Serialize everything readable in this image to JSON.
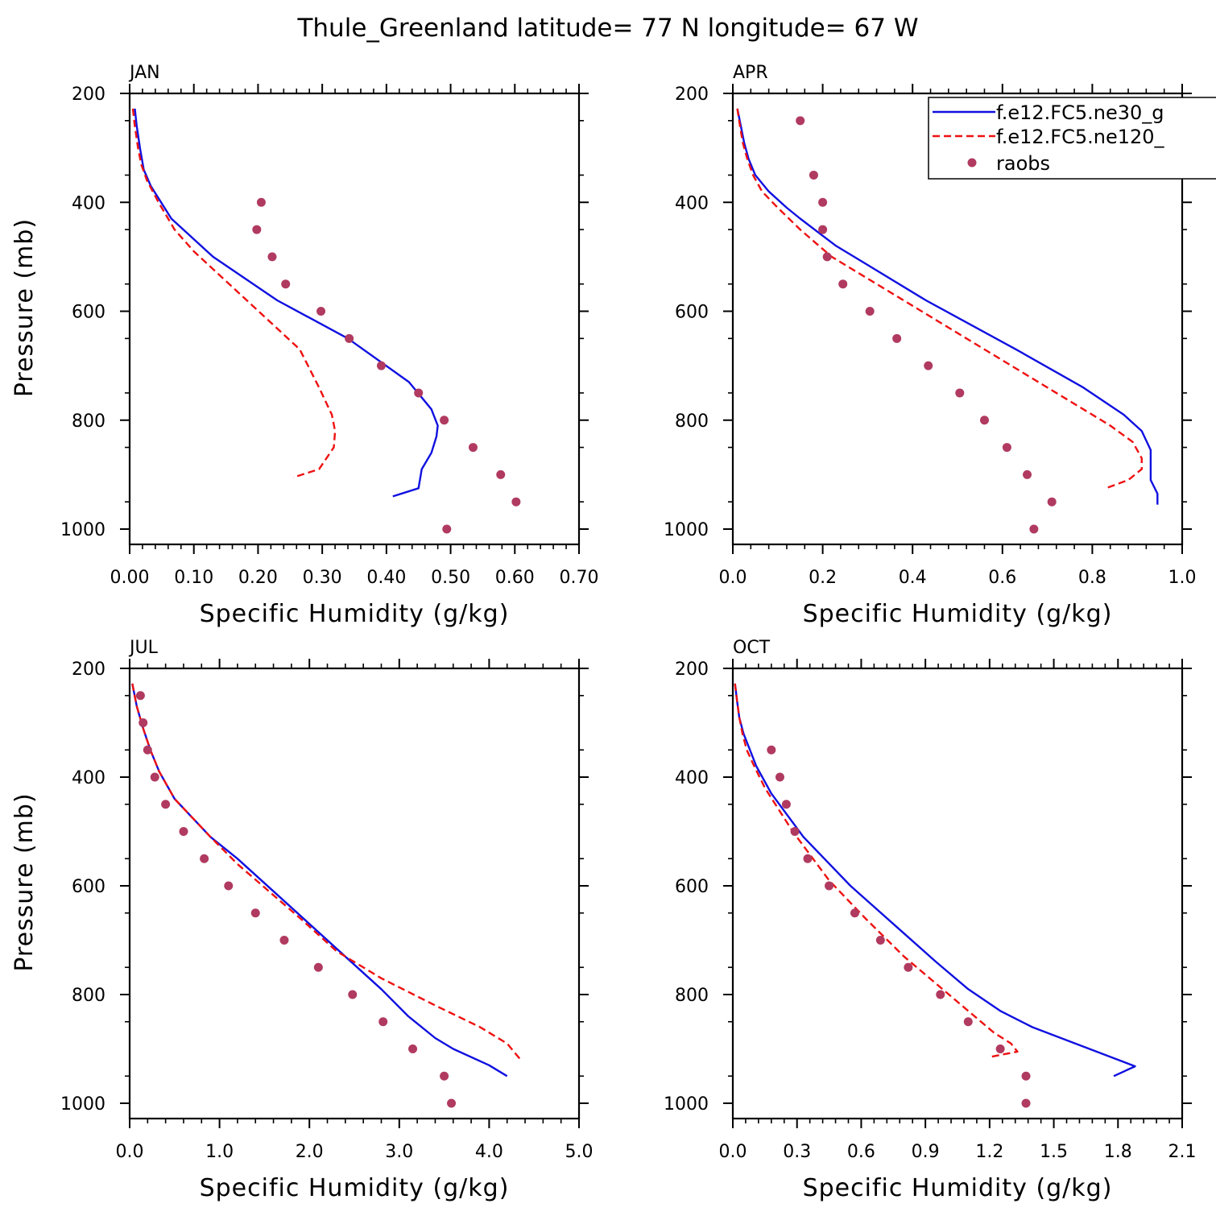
{
  "title": "Thule_Greenland  latitude= 77 N longitude= 67 W",
  "colors": {
    "model1": "#1010e0",
    "model2": "#ee1111",
    "obs": "#b03a60",
    "axis": "#000000"
  },
  "legend": {
    "entries": [
      {
        "key": "model1",
        "label": "f.e12.FC5.ne30_g",
        "style": "solid-line"
      },
      {
        "key": "model2",
        "label": "f.e12.FC5.ne120_",
        "style": "dashed-line"
      },
      {
        "key": "obs",
        "label": "raobs",
        "style": "dot"
      }
    ]
  },
  "chart_data": [
    {
      "type": "line",
      "panel_label": "JAN",
      "xlabel": "Specific Humidity (g/kg)",
      "ylabel": "Pressure (mb)",
      "xlim": [
        0,
        0.7
      ],
      "ylim": [
        200,
        1000
      ],
      "y_inverted": true,
      "xticks": [
        "0.00",
        "0.10",
        "0.20",
        "0.30",
        "0.40",
        "0.50",
        "0.60",
        "0.70"
      ],
      "yticks": [
        "200",
        "400",
        "600",
        "800",
        "1000"
      ],
      "series": [
        {
          "key": "model1",
          "points": [
            [
              0.008,
              228
            ],
            [
              0.011,
              260
            ],
            [
              0.016,
              300
            ],
            [
              0.022,
              340
            ],
            [
              0.033,
              370
            ],
            [
              0.065,
              430
            ],
            [
              0.13,
              500
            ],
            [
              0.23,
              580
            ],
            [
              0.34,
              650
            ],
            [
              0.435,
              730
            ],
            [
              0.47,
              780
            ],
            [
              0.48,
              810
            ],
            [
              0.478,
              830
            ],
            [
              0.47,
              860
            ],
            [
              0.455,
              890
            ],
            [
              0.45,
              925
            ],
            [
              0.41,
              940
            ]
          ]
        },
        {
          "key": "model2",
          "points": [
            [
              0.005,
              228
            ],
            [
              0.008,
              260
            ],
            [
              0.013,
              300
            ],
            [
              0.018,
              330
            ],
            [
              0.027,
              360
            ],
            [
              0.045,
              400
            ],
            [
              0.07,
              450
            ],
            [
              0.1,
              490
            ],
            [
              0.155,
              550
            ],
            [
              0.21,
              610
            ],
            [
              0.265,
              670
            ],
            [
              0.295,
              740
            ],
            [
              0.315,
              790
            ],
            [
              0.32,
              820
            ],
            [
              0.318,
              850
            ],
            [
              0.295,
              890
            ],
            [
              0.255,
              905
            ]
          ]
        },
        {
          "key": "obs",
          "points": [
            [
              0.205,
              400
            ],
            [
              0.198,
              450
            ],
            [
              0.222,
              500
            ],
            [
              0.243,
              550
            ],
            [
              0.298,
              600
            ],
            [
              0.342,
              650
            ],
            [
              0.392,
              700
            ],
            [
              0.45,
              750
            ],
            [
              0.49,
              800
            ],
            [
              0.535,
              850
            ],
            [
              0.578,
              900
            ],
            [
              0.602,
              950
            ],
            [
              0.494,
              1000
            ]
          ]
        }
      ]
    },
    {
      "type": "line",
      "panel_label": "APR",
      "xlabel": "Specific Humidity (g/kg)",
      "ylabel": "",
      "xlim": [
        0,
        1.0
      ],
      "ylim": [
        200,
        1000
      ],
      "y_inverted": true,
      "xticks": [
        "0.0",
        "0.2",
        "0.4",
        "0.6",
        "0.8",
        "1.0"
      ],
      "yticks": [
        "200",
        "400",
        "600",
        "800",
        "1000"
      ],
      "series": [
        {
          "key": "model1",
          "points": [
            [
              0.01,
              228
            ],
            [
              0.018,
              260
            ],
            [
              0.025,
              290
            ],
            [
              0.035,
              320
            ],
            [
              0.05,
              350
            ],
            [
              0.08,
              380
            ],
            [
              0.12,
              410
            ],
            [
              0.15,
              430
            ],
            [
              0.23,
              480
            ],
            [
              0.3,
              515
            ],
            [
              0.43,
              580
            ],
            [
              0.63,
              670
            ],
            [
              0.78,
              740
            ],
            [
              0.87,
              790
            ],
            [
              0.91,
              820
            ],
            [
              0.93,
              855
            ],
            [
              0.93,
              910
            ],
            [
              0.945,
              935
            ],
            [
              0.945,
              955
            ]
          ]
        },
        {
          "key": "model2",
          "points": [
            [
              0.01,
              228
            ],
            [
              0.016,
              260
            ],
            [
              0.022,
              290
            ],
            [
              0.032,
              320
            ],
            [
              0.045,
              350
            ],
            [
              0.065,
              380
            ],
            [
              0.1,
              410
            ],
            [
              0.15,
              450
            ],
            [
              0.22,
              500
            ],
            [
              0.3,
              540
            ],
            [
              0.42,
              600
            ],
            [
              0.6,
              690
            ],
            [
              0.74,
              760
            ],
            [
              0.84,
              810
            ],
            [
              0.89,
              840
            ],
            [
              0.91,
              870
            ],
            [
              0.91,
              890
            ],
            [
              0.88,
              910
            ],
            [
              0.83,
              925
            ]
          ]
        },
        {
          "key": "obs",
          "points": [
            [
              0.15,
              250
            ],
            [
              0.18,
              350
            ],
            [
              0.2,
              400
            ],
            [
              0.2,
              450
            ],
            [
              0.21,
              500
            ],
            [
              0.245,
              550
            ],
            [
              0.305,
              600
            ],
            [
              0.365,
              650
            ],
            [
              0.435,
              700
            ],
            [
              0.505,
              750
            ],
            [
              0.56,
              800
            ],
            [
              0.61,
              850
            ],
            [
              0.655,
              900
            ],
            [
              0.71,
              950
            ],
            [
              0.67,
              1000
            ]
          ]
        }
      ]
    },
    {
      "type": "line",
      "panel_label": "JUL",
      "xlabel": "Specific Humidity (g/kg)",
      "ylabel": "Pressure (mb)",
      "xlim": [
        0,
        5.0
      ],
      "ylim": [
        200,
        1000
      ],
      "y_inverted": true,
      "xticks": [
        "0.0",
        "1.0",
        "2.0",
        "3.0",
        "4.0",
        "5.0"
      ],
      "yticks": [
        "200",
        "400",
        "600",
        "800",
        "1000"
      ],
      "series": [
        {
          "key": "model1",
          "points": [
            [
              0.03,
              228
            ],
            [
              0.08,
              270
            ],
            [
              0.15,
              310
            ],
            [
              0.23,
              350
            ],
            [
              0.33,
              390
            ],
            [
              0.5,
              440
            ],
            [
              0.9,
              510
            ],
            [
              1.2,
              550
            ],
            [
              1.6,
              610
            ],
            [
              2.0,
              670
            ],
            [
              2.4,
              730
            ],
            [
              2.8,
              790
            ],
            [
              3.1,
              840
            ],
            [
              3.4,
              880
            ],
            [
              3.6,
              900
            ],
            [
              4.0,
              930
            ],
            [
              4.2,
              950
            ]
          ]
        },
        {
          "key": "model2",
          "points": [
            [
              0.03,
              228
            ],
            [
              0.08,
              270
            ],
            [
              0.15,
              310
            ],
            [
              0.23,
              350
            ],
            [
              0.33,
              390
            ],
            [
              0.5,
              440
            ],
            [
              0.9,
              510
            ],
            [
              1.2,
              560
            ],
            [
              1.55,
              610
            ],
            [
              1.9,
              660
            ],
            [
              2.3,
              720
            ],
            [
              2.8,
              770
            ],
            [
              3.4,
              820
            ],
            [
              3.9,
              860
            ],
            [
              4.2,
              890
            ],
            [
              4.35,
              920
            ]
          ]
        },
        {
          "key": "obs",
          "points": [
            [
              0.12,
              250
            ],
            [
              0.15,
              300
            ],
            [
              0.2,
              350
            ],
            [
              0.28,
              400
            ],
            [
              0.4,
              450
            ],
            [
              0.6,
              500
            ],
            [
              0.83,
              550
            ],
            [
              1.1,
              600
            ],
            [
              1.4,
              650
            ],
            [
              1.72,
              700
            ],
            [
              2.1,
              750
            ],
            [
              2.48,
              800
            ],
            [
              2.82,
              850
            ],
            [
              3.15,
              900
            ],
            [
              3.5,
              950
            ],
            [
              3.58,
              1000
            ]
          ]
        }
      ]
    },
    {
      "type": "line",
      "panel_label": "OCT",
      "xlabel": "Specific Humidity (g/kg)",
      "ylabel": "",
      "xlim": [
        0,
        2.1
      ],
      "ylim": [
        200,
        1000
      ],
      "y_inverted": true,
      "xticks": [
        "0.0",
        "0.3",
        "0.6",
        "0.9",
        "1.2",
        "1.5",
        "1.8",
        "2.1"
      ],
      "yticks": [
        "200",
        "400",
        "600",
        "800",
        "1000"
      ],
      "series": [
        {
          "key": "model1",
          "points": [
            [
              0.01,
              228
            ],
            [
              0.02,
              260
            ],
            [
              0.03,
              290
            ],
            [
              0.05,
              320
            ],
            [
              0.08,
              350
            ],
            [
              0.11,
              380
            ],
            [
              0.18,
              430
            ],
            [
              0.33,
              510
            ],
            [
              0.55,
              600
            ],
            [
              0.75,
              670
            ],
            [
              0.95,
              740
            ],
            [
              1.1,
              790
            ],
            [
              1.25,
              830
            ],
            [
              1.4,
              860
            ],
            [
              1.6,
              890
            ],
            [
              1.8,
              920
            ],
            [
              1.88,
              932
            ],
            [
              1.78,
              950
            ]
          ]
        },
        {
          "key": "model2",
          "points": [
            [
              0.01,
              228
            ],
            [
              0.02,
              260
            ],
            [
              0.03,
              290
            ],
            [
              0.045,
              320
            ],
            [
              0.065,
              350
            ],
            [
              0.1,
              380
            ],
            [
              0.15,
              420
            ],
            [
              0.28,
              500
            ],
            [
              0.45,
              590
            ],
            [
              0.62,
              660
            ],
            [
              0.8,
              730
            ],
            [
              0.95,
              780
            ],
            [
              1.1,
              830
            ],
            [
              1.22,
              870
            ],
            [
              1.3,
              890
            ],
            [
              1.33,
              905
            ],
            [
              1.2,
              915
            ]
          ]
        },
        {
          "key": "obs",
          "points": [
            [
              0.18,
              350
            ],
            [
              0.22,
              400
            ],
            [
              0.25,
              450
            ],
            [
              0.29,
              500
            ],
            [
              0.35,
              550
            ],
            [
              0.45,
              600
            ],
            [
              0.57,
              650
            ],
            [
              0.69,
              700
            ],
            [
              0.82,
              750
            ],
            [
              0.97,
              800
            ],
            [
              1.1,
              850
            ],
            [
              1.25,
              900
            ],
            [
              1.37,
              950
            ],
            [
              1.37,
              1000
            ]
          ]
        }
      ]
    }
  ]
}
